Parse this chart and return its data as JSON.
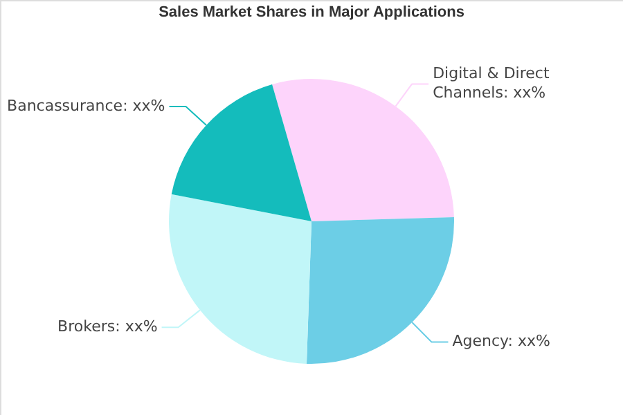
{
  "chart_data": {
    "type": "pie",
    "title": "Sales Market Shares in Major Applications",
    "categories": [
      "Digital & Direct Channels",
      "Agency",
      "Brokers",
      "Bancassurance"
    ],
    "values": [
      29,
      26,
      27.5,
      17.5
    ],
    "colors": [
      "#fdd4fb",
      "#6ccee6",
      "#c1f6f8",
      "#14bcbc"
    ],
    "value_labels": [
      "xx%",
      "xx%",
      "xx%",
      "xx%"
    ],
    "legend": false
  }
}
